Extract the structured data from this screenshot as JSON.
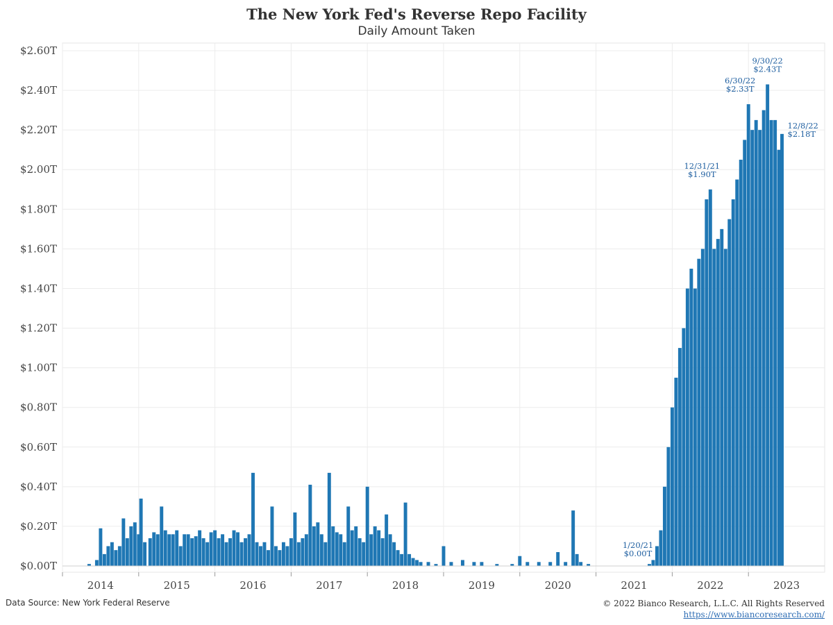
{
  "chart_data": {
    "type": "bar",
    "title": "The New York Fed's Reverse Repo Facility",
    "subtitle": "Daily Amount Taken",
    "ylim": [
      0,
      2.6
    ],
    "y_ticks": [
      {
        "value": 0.0,
        "label": "$0.00T"
      },
      {
        "value": 0.2,
        "label": "$0.20T"
      },
      {
        "value": 0.4,
        "label": "$0.40T"
      },
      {
        "value": 0.6,
        "label": "$0.60T"
      },
      {
        "value": 0.8,
        "label": "$0.80T"
      },
      {
        "value": 1.0,
        "label": "$1.00T"
      },
      {
        "value": 1.2,
        "label": "$1.20T"
      },
      {
        "value": 1.4,
        "label": "$1.40T"
      },
      {
        "value": 1.6,
        "label": "$1.60T"
      },
      {
        "value": 1.8,
        "label": "$1.80T"
      },
      {
        "value": 2.0,
        "label": "$2.00T"
      },
      {
        "value": 2.2,
        "label": "$2.20T"
      },
      {
        "value": 2.4,
        "label": "$2.40T"
      },
      {
        "value": 2.6,
        "label": "$2.60T"
      }
    ],
    "x_ticks": [
      "2014",
      "2015",
      "2016",
      "2017",
      "2018",
      "2019",
      "2020",
      "2021",
      "2022",
      "2023"
    ],
    "xlim": [
      2013.5,
      2023.5
    ],
    "bar_color": "#1f77b4",
    "grid": true,
    "series": [
      {
        "values": [
          [
            2013.85,
            0.01
          ],
          [
            2013.95,
            0.03
          ],
          [
            2014.0,
            0.19
          ],
          [
            2014.05,
            0.06
          ],
          [
            2014.1,
            0.1
          ],
          [
            2014.15,
            0.12
          ],
          [
            2014.2,
            0.08
          ],
          [
            2014.25,
            0.1
          ],
          [
            2014.3,
            0.24
          ],
          [
            2014.35,
            0.14
          ],
          [
            2014.4,
            0.2
          ],
          [
            2014.45,
            0.22
          ],
          [
            2014.5,
            0.16
          ],
          [
            2014.53,
            0.34
          ],
          [
            2014.58,
            0.12
          ],
          [
            2014.65,
            0.14
          ],
          [
            2014.7,
            0.17
          ],
          [
            2014.75,
            0.16
          ],
          [
            2014.8,
            0.3
          ],
          [
            2014.85,
            0.18
          ],
          [
            2014.9,
            0.16
          ],
          [
            2014.95,
            0.16
          ],
          [
            2015.0,
            0.18
          ],
          [
            2015.05,
            0.1
          ],
          [
            2015.1,
            0.16
          ],
          [
            2015.15,
            0.16
          ],
          [
            2015.2,
            0.14
          ],
          [
            2015.25,
            0.15
          ],
          [
            2015.3,
            0.18
          ],
          [
            2015.35,
            0.14
          ],
          [
            2015.4,
            0.12
          ],
          [
            2015.45,
            0.17
          ],
          [
            2015.5,
            0.18
          ],
          [
            2015.55,
            0.14
          ],
          [
            2015.6,
            0.16
          ],
          [
            2015.65,
            0.12
          ],
          [
            2015.7,
            0.14
          ],
          [
            2015.75,
            0.18
          ],
          [
            2015.8,
            0.17
          ],
          [
            2015.85,
            0.12
          ],
          [
            2015.9,
            0.14
          ],
          [
            2015.95,
            0.16
          ],
          [
            2016.0,
            0.47
          ],
          [
            2016.05,
            0.12
          ],
          [
            2016.1,
            0.1
          ],
          [
            2016.15,
            0.12
          ],
          [
            2016.2,
            0.08
          ],
          [
            2016.25,
            0.3
          ],
          [
            2016.3,
            0.1
          ],
          [
            2016.35,
            0.08
          ],
          [
            2016.4,
            0.12
          ],
          [
            2016.45,
            0.1
          ],
          [
            2016.5,
            0.14
          ],
          [
            2016.55,
            0.27
          ],
          [
            2016.6,
            0.12
          ],
          [
            2016.65,
            0.14
          ],
          [
            2016.7,
            0.16
          ],
          [
            2016.75,
            0.41
          ],
          [
            2016.8,
            0.2
          ],
          [
            2016.85,
            0.22
          ],
          [
            2016.9,
            0.16
          ],
          [
            2016.95,
            0.12
          ],
          [
            2017.0,
            0.47
          ],
          [
            2017.05,
            0.2
          ],
          [
            2017.1,
            0.17
          ],
          [
            2017.15,
            0.16
          ],
          [
            2017.2,
            0.12
          ],
          [
            2017.25,
            0.3
          ],
          [
            2017.3,
            0.18
          ],
          [
            2017.35,
            0.2
          ],
          [
            2017.4,
            0.14
          ],
          [
            2017.45,
            0.12
          ],
          [
            2017.5,
            0.4
          ],
          [
            2017.55,
            0.16
          ],
          [
            2017.6,
            0.2
          ],
          [
            2017.65,
            0.18
          ],
          [
            2017.7,
            0.14
          ],
          [
            2017.75,
            0.26
          ],
          [
            2017.8,
            0.16
          ],
          [
            2017.85,
            0.12
          ],
          [
            2017.9,
            0.08
          ],
          [
            2017.95,
            0.06
          ],
          [
            2018.0,
            0.32
          ],
          [
            2018.05,
            0.06
          ],
          [
            2018.1,
            0.04
          ],
          [
            2018.15,
            0.03
          ],
          [
            2018.2,
            0.02
          ],
          [
            2018.3,
            0.02
          ],
          [
            2018.4,
            0.01
          ],
          [
            2018.5,
            0.1
          ],
          [
            2018.6,
            0.02
          ],
          [
            2018.75,
            0.03
          ],
          [
            2018.9,
            0.02
          ],
          [
            2019.0,
            0.02
          ],
          [
            2019.2,
            0.01
          ],
          [
            2019.4,
            0.01
          ],
          [
            2019.5,
            0.05
          ],
          [
            2019.6,
            0.02
          ],
          [
            2019.75,
            0.02
          ],
          [
            2019.9,
            0.02
          ],
          [
            2020.0,
            0.07
          ],
          [
            2020.1,
            0.02
          ],
          [
            2020.2,
            0.28
          ],
          [
            2020.25,
            0.06
          ],
          [
            2020.3,
            0.02
          ],
          [
            2020.4,
            0.01
          ],
          [
            2021.05,
            0.0
          ],
          [
            2021.2,
            0.01
          ],
          [
            2021.25,
            0.03
          ],
          [
            2021.3,
            0.1
          ],
          [
            2021.35,
            0.18
          ],
          [
            2021.4,
            0.4
          ],
          [
            2021.45,
            0.6
          ],
          [
            2021.5,
            0.8
          ],
          [
            2021.55,
            0.95
          ],
          [
            2021.6,
            1.1
          ],
          [
            2021.65,
            1.2
          ],
          [
            2021.7,
            1.4
          ],
          [
            2021.75,
            1.5
          ],
          [
            2021.8,
            1.4
          ],
          [
            2021.85,
            1.55
          ],
          [
            2021.9,
            1.6
          ],
          [
            2021.95,
            1.85
          ],
          [
            2022.0,
            1.9
          ],
          [
            2022.05,
            1.6
          ],
          [
            2022.1,
            1.65
          ],
          [
            2022.15,
            1.7
          ],
          [
            2022.2,
            1.6
          ],
          [
            2022.25,
            1.75
          ],
          [
            2022.3,
            1.85
          ],
          [
            2022.35,
            1.95
          ],
          [
            2022.4,
            2.05
          ],
          [
            2022.45,
            2.15
          ],
          [
            2022.5,
            2.33
          ],
          [
            2022.55,
            2.2
          ],
          [
            2022.6,
            2.25
          ],
          [
            2022.65,
            2.2
          ],
          [
            2022.7,
            2.3
          ],
          [
            2022.75,
            2.43
          ],
          [
            2022.8,
            2.25
          ],
          [
            2022.85,
            2.25
          ],
          [
            2022.9,
            2.1
          ],
          [
            2022.94,
            2.18
          ]
        ]
      }
    ],
    "annotations": [
      {
        "x": 2021.05,
        "y": 0.0,
        "date": "1/20/21",
        "value": "$0.00T"
      },
      {
        "x": 2022.0,
        "y": 1.9,
        "date": "12/31/21",
        "value": "$1.90T"
      },
      {
        "x": 2022.5,
        "y": 2.33,
        "date": "6/30/22",
        "value": "$2.33T"
      },
      {
        "x": 2022.75,
        "y": 2.43,
        "date": "9/30/22",
        "value": "$2.43T"
      },
      {
        "x": 2022.94,
        "y": 2.18,
        "date": "12/8/22",
        "value": "$2.18T"
      }
    ]
  },
  "footer": {
    "source": "Data Source: New York Federal Reserve",
    "copyright": "© 2022 Bianco Research, L.L.C. All Rights Reserved",
    "url": "https://www.biancoresearch.com/"
  }
}
